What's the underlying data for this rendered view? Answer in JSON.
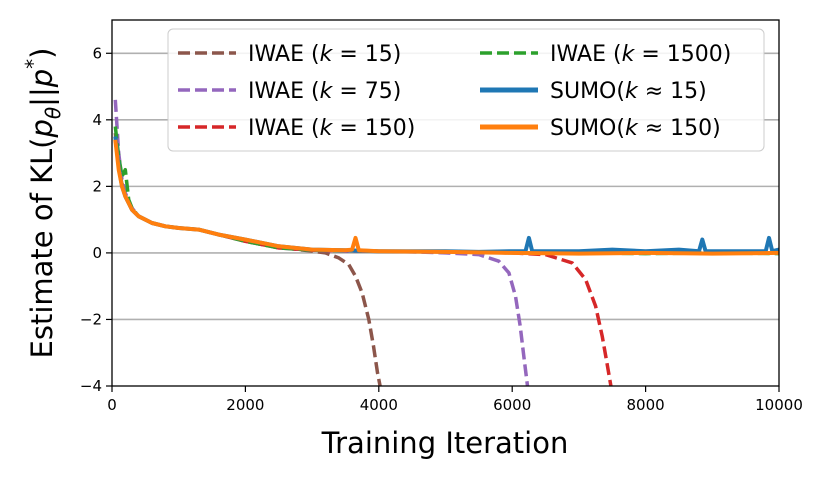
{
  "chart_data": {
    "type": "line",
    "xlabel": "Training Iteration",
    "ylabel": {
      "pre": "Estimate of KL(",
      "p": "p",
      "theta": "θ",
      "bars": "||",
      "p2": "p",
      "star": "*",
      "post": ")"
    },
    "xlim": [
      0,
      10000
    ],
    "ylim": [
      -4,
      7
    ],
    "xticks": [
      0,
      2000,
      4000,
      6000,
      8000,
      10000
    ],
    "yticks": [
      -4,
      -2,
      0,
      2,
      4,
      6
    ],
    "xtick_labels": [
      "0",
      "2000",
      "4000",
      "6000",
      "8000",
      "10000"
    ],
    "ytick_labels": [
      "−4",
      "−2",
      "0",
      "2",
      "4",
      "6"
    ],
    "grid": "horizontal",
    "legend_placement": "upper-right",
    "series": [
      {
        "name": "IWAE (k = 15)",
        "legend": {
          "pre": "IWAE (",
          "k": "k",
          "post": " = 15)"
        },
        "color": "#8c564b",
        "style": "dashed",
        "x": [
          50,
          100,
          150,
          200,
          300,
          400,
          600,
          800,
          1000,
          1300,
          1600,
          2000,
          2400,
          2800,
          3000,
          3200,
          3400,
          3550,
          3650,
          3750,
          3850,
          3920,
          3980,
          4020
        ],
        "y": [
          3.6,
          2.7,
          2.1,
          1.7,
          1.3,
          1.1,
          0.9,
          0.8,
          0.75,
          0.7,
          0.55,
          0.35,
          0.2,
          0.1,
          0.05,
          0.0,
          -0.15,
          -0.35,
          -0.7,
          -1.2,
          -2.0,
          -2.8,
          -3.6,
          -4.0
        ]
      },
      {
        "name": "IWAE (k = 75)",
        "legend": {
          "pre": "IWAE (",
          "k": "k",
          "post": " = 75)"
        },
        "color": "#9467bd",
        "style": "dashed",
        "x": [
          50,
          100,
          150,
          200,
          300,
          400,
          600,
          800,
          1000,
          1300,
          1600,
          2000,
          2500,
          3000,
          3500,
          4000,
          4500,
          5000,
          5500,
          5800,
          5950,
          6050,
          6120,
          6180,
          6230
        ],
        "y": [
          4.6,
          3.0,
          2.2,
          1.8,
          1.35,
          1.1,
          0.9,
          0.8,
          0.75,
          0.7,
          0.55,
          0.35,
          0.15,
          0.08,
          0.05,
          0.05,
          0.03,
          0.0,
          -0.05,
          -0.25,
          -0.6,
          -1.3,
          -2.2,
          -3.2,
          -4.0
        ]
      },
      {
        "name": "IWAE (k = 150)",
        "legend": {
          "pre": "IWAE (",
          "k": "k",
          "post": " = 150)"
        },
        "color": "#d62728",
        "style": "dashed",
        "x": [
          50,
          100,
          150,
          200,
          300,
          400,
          600,
          800,
          1000,
          1300,
          1600,
          2000,
          2500,
          3000,
          4000,
          5000,
          6000,
          6500,
          6900,
          7100,
          7250,
          7350,
          7420,
          7480
        ],
        "y": [
          3.4,
          2.6,
          2.0,
          1.7,
          1.3,
          1.1,
          0.9,
          0.8,
          0.75,
          0.7,
          0.55,
          0.35,
          0.15,
          0.08,
          0.05,
          0.03,
          0.0,
          -0.05,
          -0.3,
          -0.8,
          -1.6,
          -2.5,
          -3.3,
          -4.0
        ]
      },
      {
        "name": "IWAE (k = 1500)",
        "legend": {
          "pre": "IWAE (",
          "k": "k",
          "post": " = 1500)"
        },
        "color": "#2ca02c",
        "style": "dashed",
        "x": [
          50,
          100,
          150,
          200,
          250,
          300,
          400,
          600,
          800,
          1000,
          1300,
          1600,
          2000,
          2500,
          3000,
          4000,
          5000,
          6000,
          7000,
          8000,
          9000,
          10000
        ],
        "y": [
          3.8,
          2.9,
          2.3,
          2.5,
          1.6,
          1.35,
          1.1,
          0.9,
          0.8,
          0.75,
          0.7,
          0.55,
          0.35,
          0.15,
          0.08,
          0.05,
          0.03,
          0.0,
          0.0,
          -0.02,
          0.0,
          -0.02
        ]
      },
      {
        "name": "SUMO(k ≈ 15)",
        "legend": {
          "pre": "SUMO(",
          "k": "k",
          "post": " ≈ 15)"
        },
        "color": "#1f77b4",
        "style": "solid",
        "x": [
          50,
          100,
          150,
          200,
          300,
          400,
          600,
          800,
          1000,
          1300,
          1600,
          2000,
          2500,
          3000,
          3500,
          4000,
          4500,
          5000,
          5500,
          6000,
          6200,
          6250,
          6300,
          6500,
          7000,
          7500,
          8000,
          8500,
          8800,
          8850,
          8900,
          9200,
          9500,
          9800,
          9850,
          9900,
          10000
        ],
        "y": [
          3.5,
          2.6,
          2.0,
          1.7,
          1.3,
          1.1,
          0.9,
          0.8,
          0.75,
          0.7,
          0.55,
          0.4,
          0.2,
          0.1,
          0.08,
          0.05,
          0.05,
          0.05,
          0.03,
          0.05,
          0.05,
          0.45,
          0.05,
          0.05,
          0.05,
          0.1,
          0.05,
          0.1,
          0.05,
          0.4,
          0.05,
          0.05,
          0.05,
          0.05,
          0.45,
          0.05,
          0.1
        ]
      },
      {
        "name": "SUMO(k ≈ 150)",
        "legend": {
          "pre": "SUMO(",
          "k": "k",
          "post": " ≈ 150)"
        },
        "color": "#ff7f0e",
        "style": "solid",
        "x": [
          50,
          100,
          150,
          200,
          300,
          400,
          600,
          800,
          1000,
          1300,
          1600,
          2000,
          2500,
          3000,
          3500,
          3600,
          3650,
          3700,
          4000,
          5000,
          6000,
          7000,
          8000,
          9000,
          10000
        ],
        "y": [
          3.4,
          2.5,
          2.0,
          1.7,
          1.3,
          1.1,
          0.9,
          0.8,
          0.75,
          0.7,
          0.55,
          0.4,
          0.2,
          0.1,
          0.08,
          0.1,
          0.45,
          0.08,
          0.05,
          0.03,
          0.0,
          -0.02,
          0.0,
          -0.02,
          0.0
        ]
      }
    ]
  }
}
